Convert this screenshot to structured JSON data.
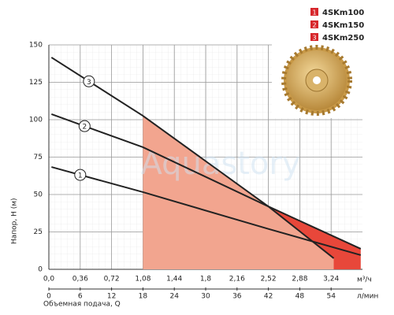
{
  "chart_data": {
    "type": "line",
    "ylabel": "Напор, H (м)",
    "xlabel": "Объемная подача, Q",
    "xunit": "м³/ч",
    "x2unit": "л/мин",
    "watermark": "Aquastory",
    "xlim": [
      0,
      3.6
    ],
    "ylim": [
      0,
      150
    ],
    "x2lim": [
      0,
      60
    ],
    "xticks": [
      {
        "value": 0,
        "label": "0,0"
      },
      {
        "value": 0.36,
        "label": "0,36"
      },
      {
        "value": 0.72,
        "label": "0,72"
      },
      {
        "value": 1.08,
        "label": "1,08"
      },
      {
        "value": 1.44,
        "label": "1,44"
      },
      {
        "value": 1.8,
        "label": "1,8"
      },
      {
        "value": 2.16,
        "label": "2,16"
      },
      {
        "value": 2.52,
        "label": "2,52"
      },
      {
        "value": 2.88,
        "label": "2,88"
      },
      {
        "value": 3.24,
        "label": "3,24"
      }
    ],
    "x2ticks": [
      0,
      6,
      12,
      18,
      24,
      30,
      36,
      42,
      48,
      54
    ],
    "yticks": [
      0,
      25,
      50,
      75,
      100,
      125,
      150
    ],
    "grid": true,
    "series": [
      {
        "name": "4SKm100",
        "number": "1",
        "color": "#222222",
        "x": [
          0.03,
          1.08,
          2.52,
          3.58
        ],
        "values": [
          68.4,
          51.6,
          27,
          9.5
        ]
      },
      {
        "name": "4SKm150",
        "number": "2",
        "color": "#222222",
        "x": [
          0.03,
          1.08,
          2.52,
          3.58
        ],
        "values": [
          103.7,
          81.6,
          42,
          13.7
        ]
      },
      {
        "name": "4SKm250",
        "number": "3",
        "color": "#222222",
        "x": [
          0.03,
          1.08,
          2.52,
          3.27
        ],
        "values": [
          141.6,
          102.6,
          42,
          7.4
        ]
      }
    ]
  }
}
